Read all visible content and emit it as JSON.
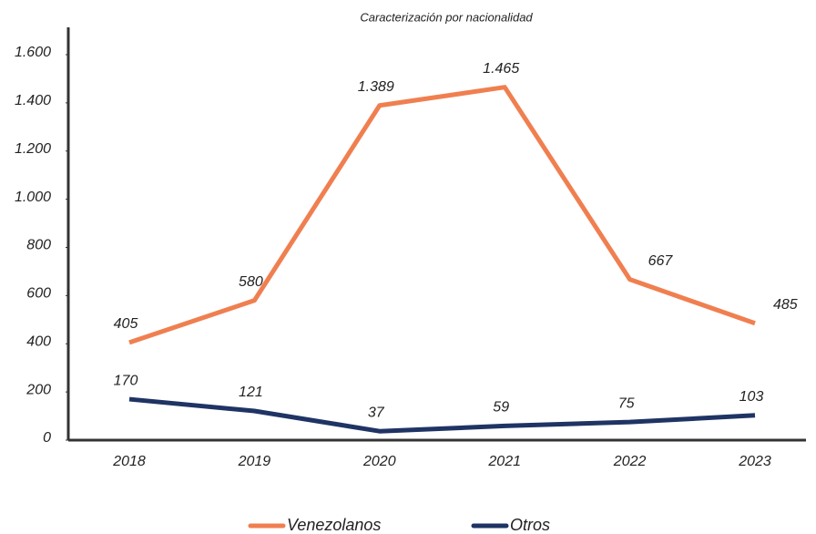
{
  "chart_data": {
    "type": "line",
    "title": "Caracterización por nacionalidad",
    "categories": [
      "2018",
      "2019",
      "2020",
      "2021",
      "2022",
      "2023"
    ],
    "series": [
      {
        "name": "Venezolanos",
        "color": "#f07f50",
        "values": [
          405,
          580,
          1389,
          1465,
          667,
          485
        ],
        "value_labels": [
          "405",
          "580",
          "1.389",
          "1.465",
          "667",
          "485"
        ]
      },
      {
        "name": "Otros",
        "color": "#1f3464",
        "values": [
          170,
          121,
          37,
          59,
          75,
          103
        ]
      }
    ],
    "ylim": [
      0,
      1600
    ],
    "yticks": [
      0,
      200,
      400,
      600,
      800,
      {
        "value": 1000,
        "label": "1.000"
      },
      {
        "value": 1200,
        "label": "1.200"
      },
      {
        "value": 1400,
        "label": "1.400"
      },
      {
        "value": 1600,
        "label": "1.600"
      }
    ],
    "grid": false,
    "legend": "bottom"
  }
}
